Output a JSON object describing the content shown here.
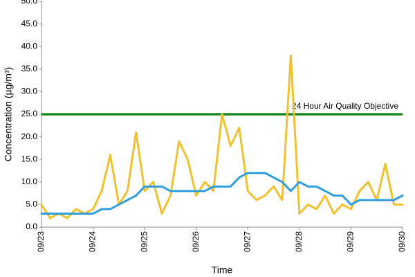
{
  "chart_data": {
    "type": "line",
    "y_label": "Concentration (µg/m³)",
    "x_label": "Time",
    "categories": [
      "09/23",
      null,
      null,
      null,
      null,
      null,
      "09/24",
      null,
      null,
      null,
      null,
      null,
      "09/25",
      null,
      null,
      null,
      null,
      null,
      "09/26",
      null,
      null,
      null,
      null,
      null,
      "09/27",
      null,
      null,
      null,
      null,
      null,
      "09/28",
      null,
      null,
      null,
      null,
      null,
      "09/29",
      null,
      null,
      null,
      null,
      null,
      "09/30"
    ],
    "series": [
      {
        "color": "#f2c12e",
        "values": [
          5,
          2,
          3,
          2,
          4,
          3,
          4,
          8,
          16,
          5,
          8,
          21,
          8,
          10,
          3,
          7,
          19,
          15,
          7,
          10,
          8,
          25,
          18,
          22,
          8,
          6,
          7,
          9,
          6,
          38,
          3,
          5,
          4,
          7,
          3,
          5,
          4,
          8,
          10,
          6,
          14,
          5,
          5
        ]
      },
      {
        "color": "#2f9fe0",
        "values": [
          3,
          3,
          3,
          3,
          3,
          3,
          3,
          4,
          4,
          5,
          6,
          7,
          9,
          9,
          9,
          8,
          8,
          8,
          8,
          8,
          9,
          9,
          9,
          11,
          12,
          12,
          12,
          11,
          10,
          8,
          10,
          9,
          9,
          8,
          7,
          7,
          5,
          6,
          6,
          6,
          6,
          6,
          7
        ]
      }
    ],
    "objective": {
      "value": 25,
      "label": "24 Hour Air Quality Objective",
      "color": "#1e8c1e"
    },
    "ylim": [
      0,
      50
    ],
    "yticks": [
      {
        "value": 0,
        "label": "0.0"
      },
      {
        "value": 5,
        "label": "5.0"
      },
      {
        "value": 10,
        "label": "10.0"
      },
      {
        "value": 15,
        "label": "15.0"
      },
      {
        "value": 20,
        "label": "20.0"
      },
      {
        "value": 25,
        "label": "25.0"
      },
      {
        "value": 30,
        "label": "30.0"
      },
      {
        "value": 35,
        "label": "35.0"
      },
      {
        "value": 40,
        "label": "40.0"
      },
      {
        "value": 45,
        "label": "45.0"
      },
      {
        "value": 50,
        "label": "50.0"
      }
    ],
    "grid": false
  }
}
